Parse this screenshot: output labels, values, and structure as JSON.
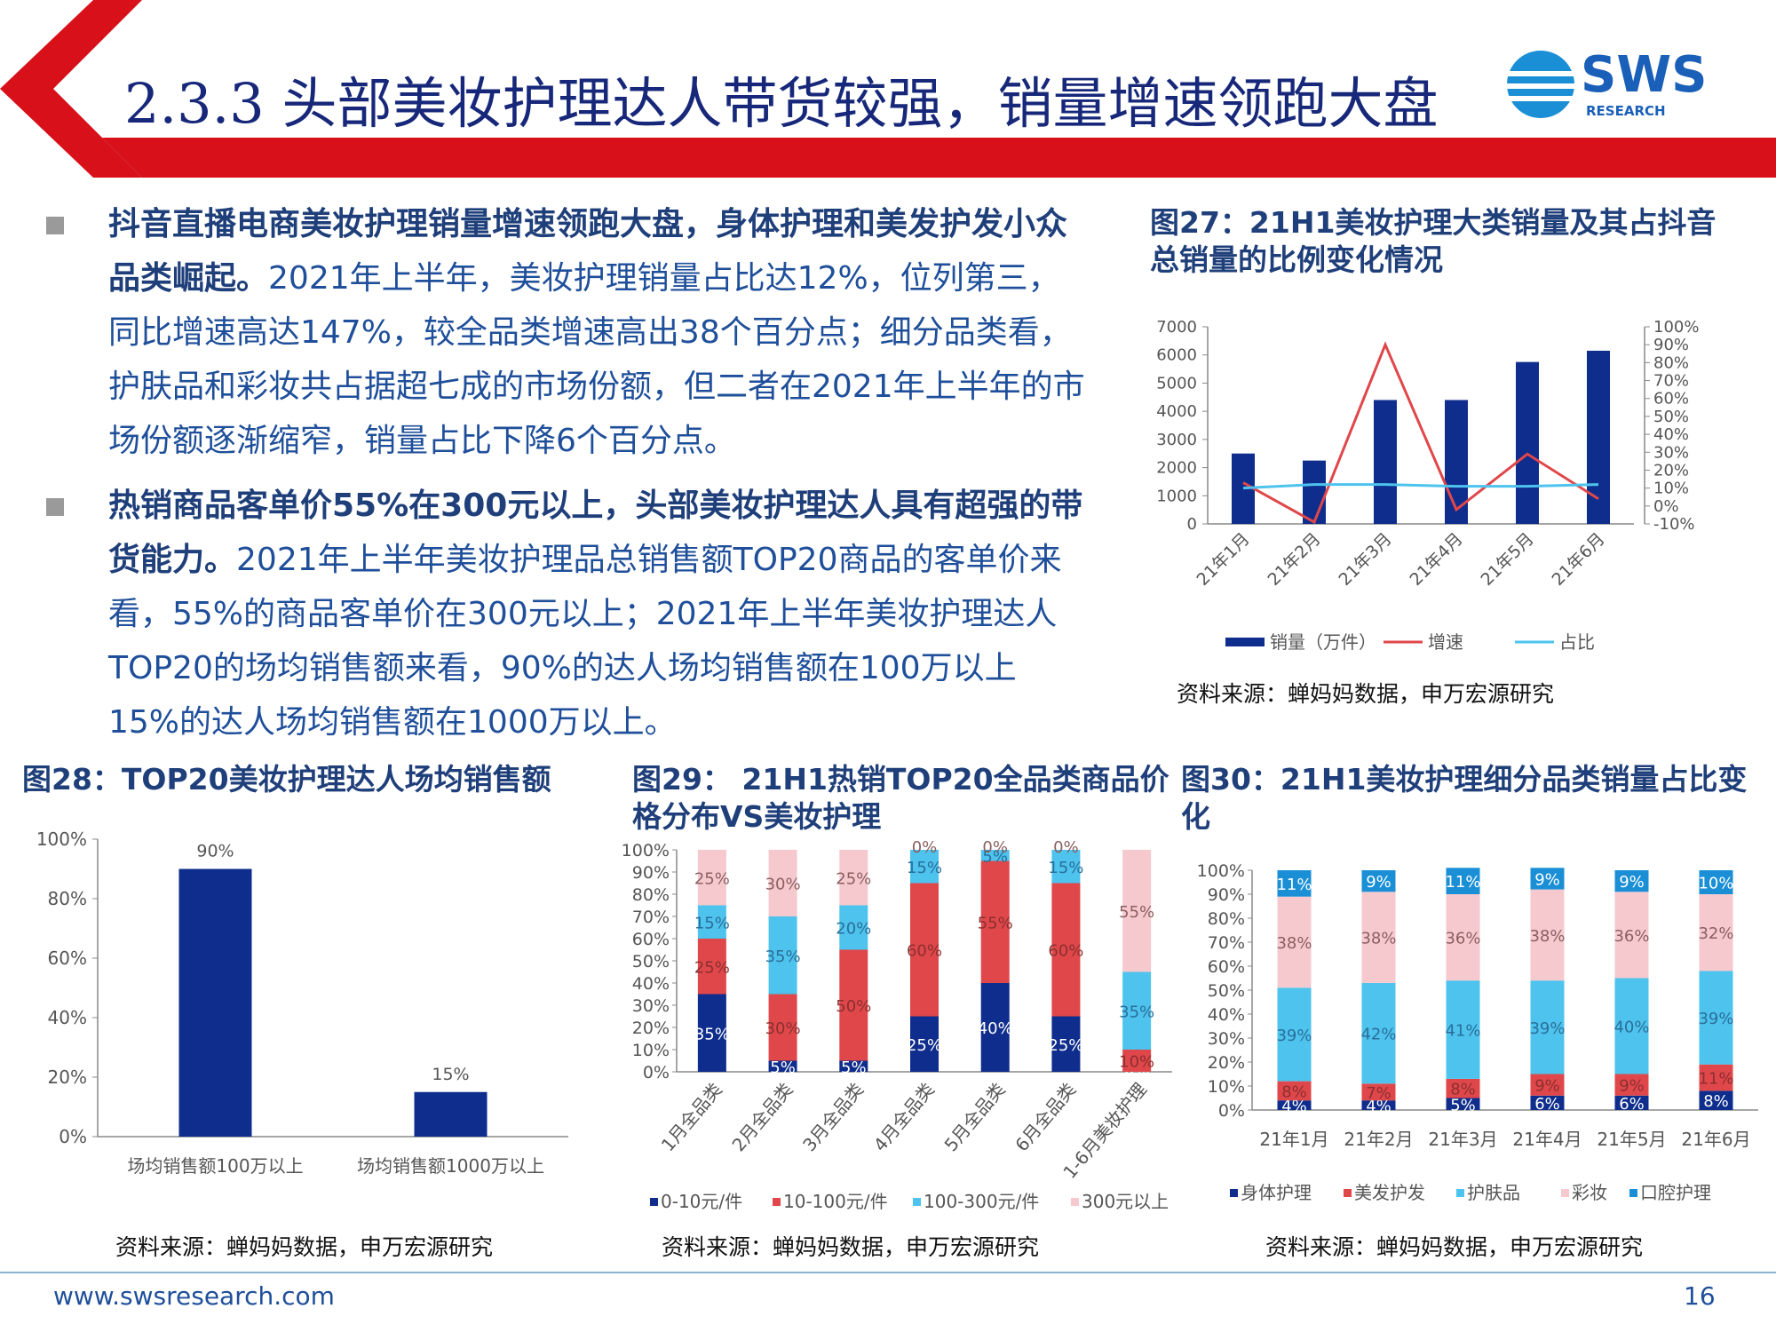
{
  "slide": {
    "title": "2.3.3 头部美妆护理达人带货较强，销量增速领跑大盘",
    "logo_text": "SWS",
    "logo_sub": "RESEARCH"
  },
  "bullets": [
    {
      "bold": "抖音直播电商美妆护理销量增速领跑大盘，身体护理和美发护发小众品类崛起。",
      "text": "2021年上半年，美妆护理销量占比达12%，位列第三，同比增速高达147%，较全品类增速高出38个百分点；细分品类看，护肤品和彩妆共占据超七成的市场份额，但二者在2021年上半年的市场份额逐渐缩窄，销量占比下降6个百分点。"
    },
    {
      "bold": "热销商品客单价55%在300元以上，头部美妆护理达人具有超强的带货能力。",
      "text": "2021年上半年美妆护理品总销售额TOP20商品的客单价来看，55%的商品客单价在300元以上；2021年上半年美妆护理达人TOP20的场均销售额来看，90%的达人场均销售额在100万以上 15%的达人场均销售额在1000万以上。"
    }
  ],
  "figures": {
    "fig27": {
      "title": "图27：21H1美妆护理大类销量及其占抖音总销量的比例变化情况",
      "source": "资料来源：蝉妈妈数据，申万宏源研究"
    },
    "fig28": {
      "title": "图28：TOP20美妆护理达人场均销售额",
      "source": "资料来源：蝉妈妈数据，申万宏源研究"
    },
    "fig29": {
      "title": "图29： 21H1热销TOP20全品类商品价格分布VS美妆护理",
      "source": "资料来源：蝉妈妈数据，申万宏源研究"
    },
    "fig30": {
      "title": "图30：21H1美妆护理细分品类销量占比变化",
      "source": "资料来源：蝉妈妈数据，申万宏源研究"
    }
  },
  "footer": {
    "url": "www.swsresearch.com",
    "page": "16"
  },
  "colors": {
    "navy": "#0f2d8c",
    "red": "#e0474a",
    "light_blue": "#4dc3ee",
    "pink": "#f6c9cf",
    "cyan": "#1a8fd6",
    "title": "#17287a",
    "accent_red": "#d8101a"
  },
  "chart_data": [
    {
      "id": "fig27",
      "type": "bar",
      "categories": [
        "21年1月",
        "21年2月",
        "21年3月",
        "21年4月",
        "21年5月",
        "21年6月"
      ],
      "series": [
        {
          "name": "销量（万件）",
          "type": "bar",
          "axis": "left",
          "values": [
            2500,
            2250,
            4400,
            4400,
            5750,
            6150
          ]
        },
        {
          "name": "增速",
          "type": "line",
          "axis": "right",
          "values": [
            0.13,
            -0.09,
            0.9,
            -0.02,
            0.29,
            0.04
          ]
        },
        {
          "name": "占比",
          "type": "line",
          "axis": "right",
          "values": [
            0.1,
            0.12,
            0.12,
            0.11,
            0.11,
            0.12
          ]
        }
      ],
      "yticks_left": [
        "0",
        "1000",
        "2000",
        "3000",
        "4000",
        "5000",
        "6000",
        "7000"
      ],
      "yticks_right": [
        "100%",
        "90%",
        "80%",
        "70%",
        "60%",
        "50%",
        "40%",
        "30%",
        "20%",
        "10%",
        "0%",
        "-10%"
      ],
      "ylim_left": [
        0,
        7000
      ],
      "ylim_right": [
        -0.1,
        1.0
      ],
      "legend": "bottom"
    },
    {
      "id": "fig28",
      "type": "bar",
      "categories": [
        "场均销售额100万以上",
        "场均销售额1000万以上"
      ],
      "values": [
        0.9,
        0.15
      ],
      "data_labels": [
        "90%",
        "15%"
      ],
      "yticks": [
        "100%",
        "80%",
        "60%",
        "40%",
        "20%",
        "0%"
      ],
      "ylim": [
        0,
        1
      ]
    },
    {
      "id": "fig29",
      "type": "bar",
      "stacked": true,
      "categories": [
        "1月全品类",
        "2月全品类",
        "3月全品类",
        "4月全品类",
        "5月全品类",
        "6月全品类",
        "1-6月美妆护理"
      ],
      "series": [
        {
          "name": "0-10元/件",
          "values": [
            35,
            5,
            5,
            25,
            40,
            25,
            0
          ],
          "labels": [
            "35%",
            "5%",
            "5%",
            "25%",
            "40%",
            "25%",
            "0%"
          ]
        },
        {
          "name": "10-100元/件",
          "values": [
            25,
            30,
            50,
            60,
            55,
            60,
            10
          ],
          "labels": [
            "25%",
            "30%",
            "50%",
            "60%",
            "55%",
            "60%",
            "10%"
          ]
        },
        {
          "name": "100-300元/件",
          "values": [
            15,
            35,
            20,
            15,
            5,
            15,
            35
          ],
          "labels": [
            "15%",
            "35%",
            "20%",
            "15%",
            "5%",
            "15%",
            "35%"
          ]
        },
        {
          "name": "300元以上",
          "values": [
            25,
            30,
            25,
            0,
            0,
            0,
            55
          ],
          "labels": [
            "25%",
            "30%",
            "25%",
            "0%",
            "0%",
            "0%",
            "55%"
          ]
        }
      ],
      "yticks": [
        "100%",
        "90%",
        "80%",
        "70%",
        "60%",
        "50%",
        "40%",
        "30%",
        "20%",
        "10%",
        "0%"
      ],
      "ylim": [
        0,
        100
      ],
      "legend": "bottom"
    },
    {
      "id": "fig30",
      "type": "bar",
      "stacked": true,
      "categories": [
        "21年1月",
        "21年2月",
        "21年3月",
        "21年4月",
        "21年5月",
        "21年6月"
      ],
      "series": [
        {
          "name": "身体护理",
          "values": [
            4,
            4,
            5,
            6,
            6,
            8
          ],
          "labels": [
            "4%",
            "4%",
            "5%",
            "6%",
            "6%",
            "8%"
          ]
        },
        {
          "name": "美发护发",
          "values": [
            8,
            7,
            8,
            9,
            9,
            11
          ],
          "labels": [
            "8%",
            "7%",
            "8%",
            "9%",
            "9%",
            "11%"
          ]
        },
        {
          "name": "护肤品",
          "values": [
            39,
            42,
            41,
            39,
            40,
            39
          ],
          "labels": [
            "39%",
            "42%",
            "41%",
            "39%",
            "40%",
            "39%"
          ]
        },
        {
          "name": "彩妆",
          "values": [
            38,
            38,
            36,
            38,
            36,
            32
          ],
          "labels": [
            "38%",
            "38%",
            "36%",
            "38%",
            "36%",
            "32%"
          ]
        },
        {
          "name": "口腔护理",
          "values": [
            11,
            9,
            11,
            9,
            9,
            10
          ],
          "labels": [
            "11%",
            "9%",
            "11%",
            "9%",
            "9%",
            "10%"
          ]
        }
      ],
      "yticks": [
        "100%",
        "90%",
        "80%",
        "70%",
        "60%",
        "50%",
        "40%",
        "30%",
        "20%",
        "10%",
        "0%"
      ],
      "ylim": [
        0,
        100
      ],
      "legend": "bottom"
    }
  ]
}
